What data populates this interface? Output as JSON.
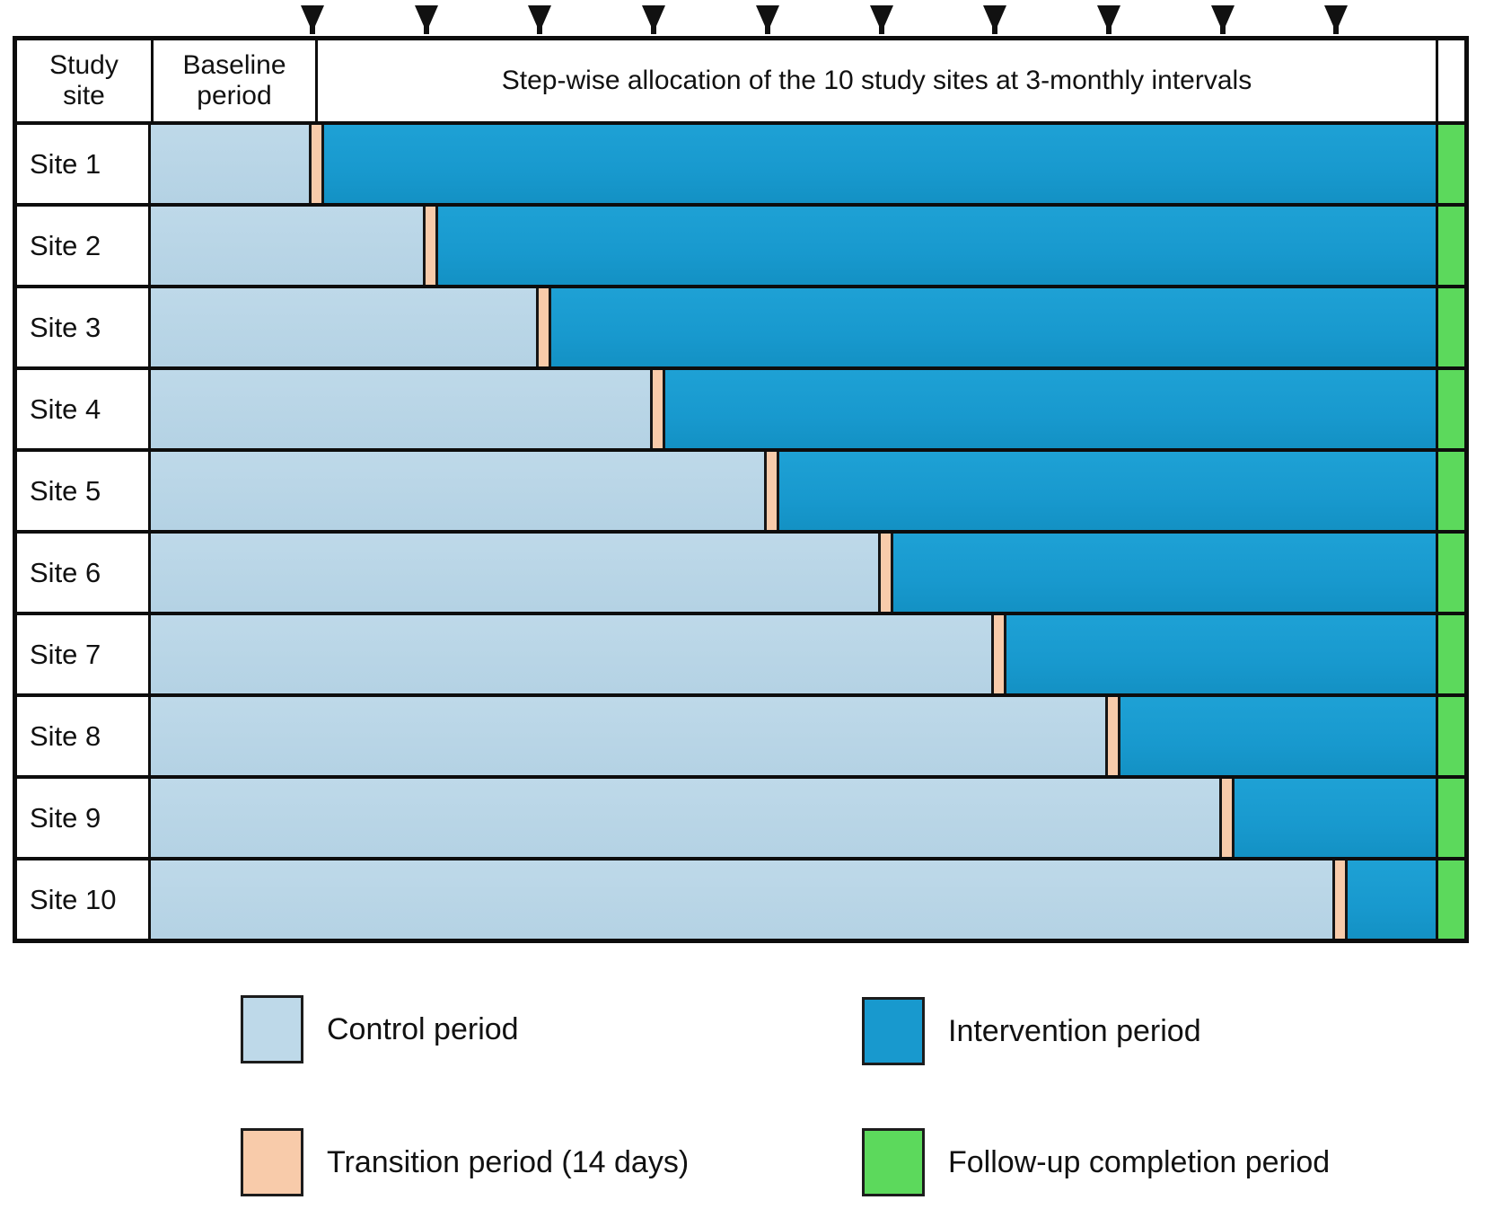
{
  "figure": {
    "header": {
      "study_site": "Study\nsite",
      "baseline": "Baseline\nperiod",
      "stepwise": "Step-wise allocation of the 10 study sites at 3-monthly intervals"
    },
    "arrows": {
      "count": 10,
      "icon": "down-triangle"
    },
    "sites": [
      {
        "label": "Site 1",
        "switch_step": 1
      },
      {
        "label": "Site 2",
        "switch_step": 2
      },
      {
        "label": "Site 3",
        "switch_step": 3
      },
      {
        "label": "Site 4",
        "switch_step": 4
      },
      {
        "label": "Site 5",
        "switch_step": 5
      },
      {
        "label": "Site 6",
        "switch_step": 6
      },
      {
        "label": "Site 7",
        "switch_step": 7
      },
      {
        "label": "Site 8",
        "switch_step": 8
      },
      {
        "label": "Site 9",
        "switch_step": 9
      },
      {
        "label": "Site 10",
        "switch_step": 10
      }
    ],
    "legend": [
      {
        "key": "control",
        "label": "Control period"
      },
      {
        "key": "intervention",
        "label": "Intervention period"
      },
      {
        "key": "transition",
        "label": "Transition period (14 days)"
      },
      {
        "key": "followup",
        "label": "Follow-up completion period"
      }
    ],
    "colors": {
      "control": "#bed9e9",
      "intervention": "#1899ce",
      "transition": "#f8cbaa",
      "followup": "#5cd95c",
      "border": "#0d0d0d"
    }
  }
}
